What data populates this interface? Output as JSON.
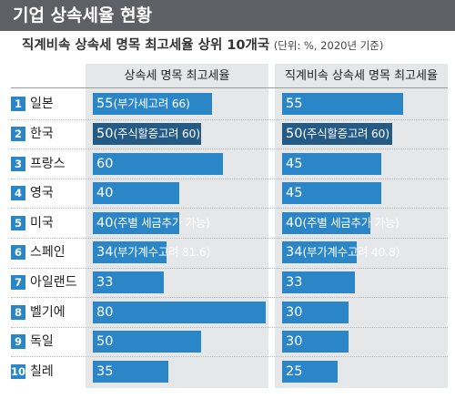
{
  "title": "기업 상속세율 현황",
  "subtitle": "직계비속 상속세 명목 최고세율 상위 10개국",
  "subtitle_note": "(단위: %, 2020년 기준)",
  "colors": {
    "title_bar": "#5d6064",
    "bar": "#2a86c6",
    "bar_highlight": "#245a86",
    "panel": "#e6e7e8",
    "rank_badge": "#2a86c6"
  },
  "chart_data": {
    "type": "bar",
    "orientation": "horizontal",
    "categories": [
      "일본",
      "한국",
      "프랑스",
      "영국",
      "미국",
      "스페인",
      "아일랜드",
      "벨기에",
      "독일",
      "칠레"
    ],
    "ranks": [
      "1",
      "2",
      "3",
      "4",
      "5",
      "6",
      "7",
      "8",
      "9",
      "10"
    ],
    "highlight_category": "한국",
    "xlim": [
      0,
      80
    ],
    "grid": false,
    "series": [
      {
        "name": "상속세 명목 최고세율",
        "values": [
          55,
          50,
          60,
          40,
          40,
          34,
          33,
          80,
          50,
          35
        ],
        "notes": [
          "(부가세고려 66)",
          "(주식할증고려 60)",
          "",
          "",
          "(주별 세금추가 가능)",
          "(부가계수고려 81.6)",
          "",
          "",
          "",
          ""
        ]
      },
      {
        "name": "직계비속 상속세 명목 최고세율",
        "values": [
          55,
          50,
          45,
          45,
          40,
          34,
          33,
          30,
          30,
          25
        ],
        "notes": [
          "",
          "(주식할증고려 60)",
          "",
          "",
          "(주별 세금추가 가능)",
          "(부가계수고려 40.8)",
          "",
          "",
          "",
          ""
        ]
      }
    ]
  }
}
